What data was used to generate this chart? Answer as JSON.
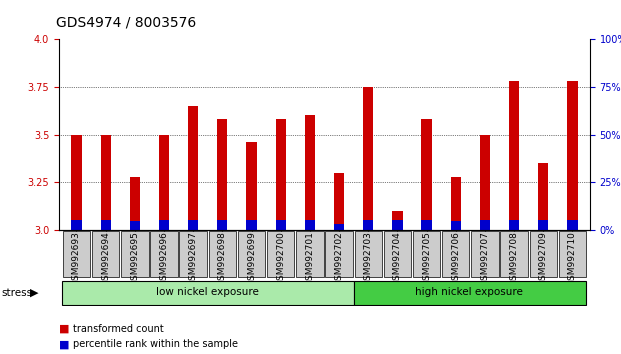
{
  "title": "GDS4974 / 8003576",
  "samples": [
    "GSM992693",
    "GSM992694",
    "GSM992695",
    "GSM992696",
    "GSM992697",
    "GSM992698",
    "GSM992699",
    "GSM992700",
    "GSM992701",
    "GSM992702",
    "GSM992703",
    "GSM992704",
    "GSM992705",
    "GSM992706",
    "GSM992707",
    "GSM992708",
    "GSM992709",
    "GSM992710"
  ],
  "red_values": [
    3.5,
    3.5,
    3.28,
    3.5,
    3.65,
    3.58,
    3.46,
    3.58,
    3.6,
    3.3,
    3.75,
    3.1,
    3.58,
    3.28,
    3.5,
    3.78,
    3.35,
    3.78
  ],
  "blue_heights": [
    0.055,
    0.055,
    0.045,
    0.055,
    0.055,
    0.055,
    0.055,
    0.055,
    0.055,
    0.03,
    0.055,
    0.055,
    0.055,
    0.05,
    0.055,
    0.055,
    0.055,
    0.055
  ],
  "ymin": 3.0,
  "ymax": 4.0,
  "yright_min": 0,
  "yright_max": 100,
  "yticks_left": [
    3.0,
    3.25,
    3.5,
    3.75,
    4.0
  ],
  "yticks_right": [
    0,
    25,
    50,
    75,
    100
  ],
  "ytick_labels_right": [
    "0%",
    "25%",
    "50%",
    "75%",
    "100%"
  ],
  "low_nickel_count": 10,
  "high_nickel_count": 8,
  "low_nickel_label": "low nickel exposure",
  "high_nickel_label": "high nickel exposure",
  "stress_label": "stress",
  "legend_red": "transformed count",
  "legend_blue": "percentile rank within the sample",
  "red_color": "#cc0000",
  "blue_color": "#0000cc",
  "tick_box_color": "#cccccc",
  "low_nickel_color": "#aaeaaa",
  "high_nickel_color": "#44cc44",
  "bar_width": 0.35,
  "title_fontsize": 10,
  "tick_fontsize": 6.5,
  "fig_bg": "#ffffff"
}
